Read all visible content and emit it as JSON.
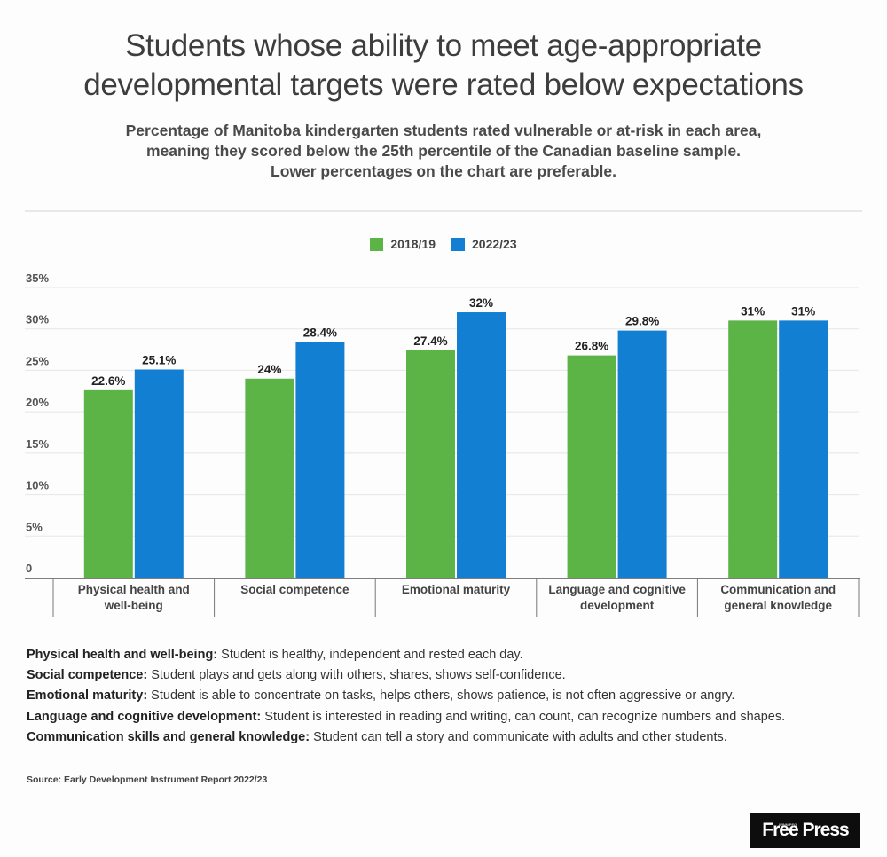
{
  "header": {
    "title_lines": [
      "Students whose ability to meet age-appropriate",
      "developmental targets were rated below expectations"
    ],
    "subtitle_lines": [
      "Percentage of Manitoba kindergarten students rated vulnerable or at-risk in each area,",
      "meaning they scored below the 25th percentile of the Canadian baseline sample.",
      "Lower percentages on the chart are preferable."
    ]
  },
  "legend": [
    {
      "label": "2018/19",
      "color": "#5cb346"
    },
    {
      "label": "2022/23",
      "color": "#127fd3"
    }
  ],
  "chart_data": {
    "type": "bar",
    "title": "Students whose ability to meet age-appropriate developmental targets were rated below expectations",
    "xlabel": "",
    "ylabel": "",
    "ylim": [
      0,
      35
    ],
    "yticks": [
      0,
      5,
      10,
      15,
      20,
      25,
      30,
      35
    ],
    "ytick_labels": [
      "0",
      "5%",
      "10%",
      "15%",
      "20%",
      "25%",
      "30%",
      "35%"
    ],
    "grid": true,
    "legend_position": "top-center",
    "categories": [
      [
        "Physical health and",
        "well-being"
      ],
      [
        "Social competence"
      ],
      [
        "Emotional maturity"
      ],
      [
        "Language and cognitive",
        "development"
      ],
      [
        "Communication and",
        "general knowledge"
      ]
    ],
    "series": [
      {
        "name": "2018/19",
        "color": "#5cb346",
        "values": [
          22.6,
          24,
          27.4,
          26.8,
          31
        ],
        "labels": [
          "22.6%",
          "24%",
          "27.4%",
          "26.8%",
          "31%"
        ]
      },
      {
        "name": "2022/23",
        "color": "#127fd3",
        "values": [
          25.1,
          28.4,
          32,
          29.8,
          31
        ],
        "labels": [
          "25.1%",
          "28.4%",
          "32%",
          "29.8%",
          "31%"
        ]
      }
    ]
  },
  "notes": [
    {
      "term": "Physical health and well-being:",
      "text": " Student is healthy, independent and rested each day."
    },
    {
      "term": "Social competence:",
      "text": " Student plays and gets along with others, shares, shows self-confidence."
    },
    {
      "term": "Emotional maturity:",
      "text": " Student is able to concentrate on tasks, helps others, shows patience, is not often aggressive or angry."
    },
    {
      "term": "Language and cognitive development:",
      "text": " Student is interested in reading and writing, can count, can recognize numbers and shapes."
    },
    {
      "term": "Communication skills and general knowledge:",
      "text": " Student can tell a story and communicate with adults and other students."
    }
  ],
  "source": "Source: Early Development Instrument Report 2022/23",
  "logo": {
    "text": "Free Press",
    "small_text": "WINNIPEG"
  }
}
